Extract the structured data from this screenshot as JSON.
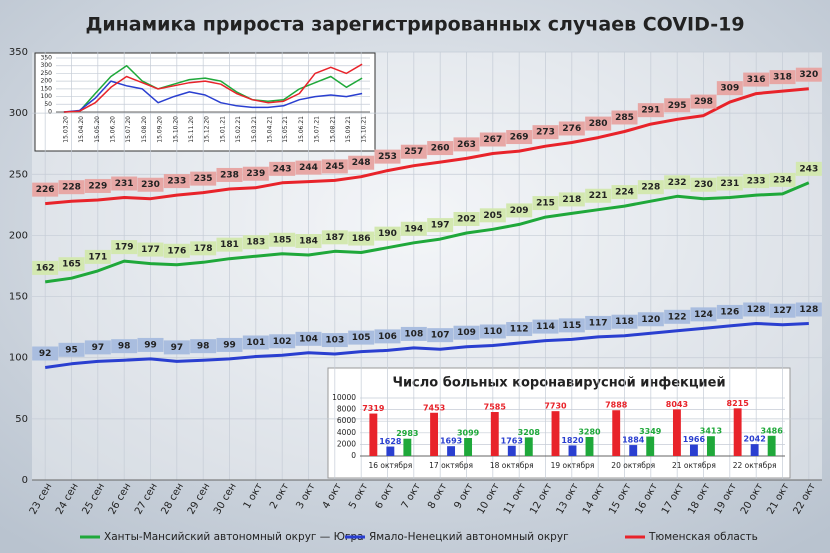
{
  "chart_data": [
    {
      "type": "line",
      "title": "Динамика прироста зарегистрированных случаев COVID-19",
      "categories": [
        "23 сен",
        "24 сен",
        "25 сен",
        "26 сен",
        "27 сен",
        "28 сен",
        "29 сен",
        "30 сен",
        "1 окт",
        "2 окт",
        "3 окт",
        "4 окт",
        "5 окт",
        "6 окт",
        "7 окт",
        "8 окт",
        "9 окт",
        "10 окт",
        "11 окт",
        "12 окт",
        "13 окт",
        "14 окт",
        "15 окт",
        "16 окт",
        "17 окт",
        "18 окт",
        "19 окт",
        "20 окт",
        "21 окт",
        "22 окт"
      ],
      "series": [
        {
          "name": "Ханты-Мансийский автономный округ — Югра",
          "color": "#1fa83a",
          "label_bg": "#d3e8b0",
          "values": [
            162,
            165,
            171,
            179,
            177,
            176,
            178,
            181,
            183,
            185,
            184,
            187,
            186,
            190,
            194,
            197,
            202,
            205,
            209,
            215,
            218,
            221,
            224,
            228,
            232,
            230,
            231,
            233,
            234,
            243
          ]
        },
        {
          "name": "Ямало-Ненецкий автономный округ",
          "color": "#2a3fd0",
          "label_bg": "#a9bddf",
          "values": [
            92,
            95,
            97,
            98,
            99,
            97,
            98,
            99,
            101,
            102,
            104,
            103,
            105,
            106,
            108,
            107,
            109,
            110,
            112,
            114,
            115,
            117,
            118,
            120,
            122,
            124,
            126,
            128,
            127,
            128
          ]
        },
        {
          "name": "Тюменская область",
          "color": "#e8232a",
          "label_bg": "#e7a7a5",
          "values": [
            226,
            228,
            229,
            231,
            230,
            233,
            235,
            238,
            239,
            243,
            244,
            245,
            248,
            253,
            257,
            260,
            263,
            267,
            269,
            273,
            276,
            280,
            285,
            291,
            295,
            298,
            309,
            316,
            318,
            320
          ]
        }
      ],
      "ylim": [
        0,
        350
      ],
      "yticks": [
        0,
        50,
        100,
        150,
        200,
        250,
        300,
        350
      ],
      "grid": true,
      "data_labels": true,
      "legend": "bottom"
    },
    {
      "type": "line",
      "categories": [
        "15.03.20",
        "15.04.20",
        "15.05.20",
        "15.06.20",
        "15.07.20",
        "15.08.20",
        "15.09.20",
        "15.10.20",
        "15.11.20",
        "15.12.20",
        "15.01.21",
        "15.02.21",
        "15.03.21",
        "15.04.21",
        "15.05.21",
        "15.06.21",
        "15.07.21",
        "15.08.21",
        "15.09.21",
        "15.10.21"
      ],
      "series": [
        {
          "color": "#1fa83a",
          "values": [
            0,
            5,
            120,
            230,
            300,
            200,
            150,
            180,
            210,
            220,
            200,
            130,
            80,
            70,
            80,
            150,
            190,
            230,
            160,
            220
          ]
        },
        {
          "color": "#2a3fd0",
          "values": [
            0,
            10,
            90,
            200,
            170,
            150,
            60,
            100,
            130,
            110,
            60,
            40,
            30,
            30,
            40,
            80,
            100,
            110,
            100,
            120
          ]
        },
        {
          "color": "#e8232a",
          "values": [
            0,
            5,
            60,
            160,
            230,
            190,
            150,
            170,
            190,
            200,
            180,
            120,
            80,
            60,
            70,
            120,
            250,
            290,
            250,
            310
          ]
        }
      ],
      "ylim": [
        0,
        350
      ],
      "yticks": [
        0,
        50,
        100,
        150,
        200,
        250,
        300,
        350
      ],
      "grid": true,
      "data_labels": false
    },
    {
      "type": "bar",
      "title": "Число больных коронавирусной инфекцией",
      "categories": [
        "16 октября",
        "17 октября",
        "18 октября",
        "19 октября",
        "20 октября",
        "21 октября",
        "22 октября"
      ],
      "series": [
        {
          "color": "#e8232a",
          "values": [
            7319,
            7453,
            7585,
            7730,
            7888,
            8043,
            8215
          ]
        },
        {
          "color": "#2a3fd0",
          "values": [
            1628,
            1693,
            1763,
            1820,
            1884,
            1966,
            2042
          ]
        },
        {
          "color": "#1fa83a",
          "values": [
            2983,
            3099,
            3208,
            3280,
            3349,
            3413,
            3486
          ]
        }
      ],
      "ylim": [
        0,
        10000
      ],
      "yticks": [
        0,
        2000,
        4000,
        6000,
        8000,
        10000
      ],
      "grid": true,
      "data_labels": true
    }
  ]
}
